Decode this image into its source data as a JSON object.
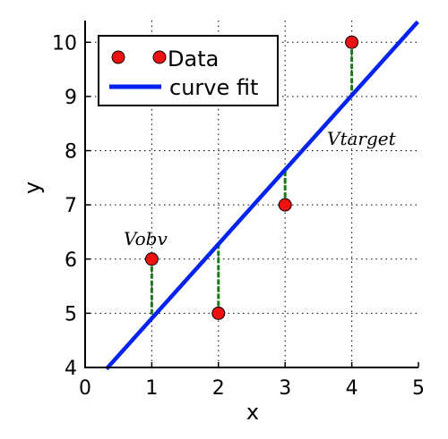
{
  "chart_data": {
    "type": "scatter",
    "xlabel": "x",
    "ylabel": "y",
    "xlim": [
      0,
      5
    ],
    "ylim": [
      4,
      10.4
    ],
    "xticks": [
      0,
      1,
      2,
      3,
      4,
      5
    ],
    "yticks": [
      4,
      5,
      6,
      7,
      8,
      9,
      10
    ],
    "grid": true,
    "legend_position": "top-left",
    "series": [
      {
        "name": "Data",
        "type": "scatter",
        "x": [
          1,
          2,
          3,
          4
        ],
        "y": [
          6,
          5,
          7,
          10
        ],
        "marker_color": "#ee1111"
      },
      {
        "name": "curve fit",
        "type": "line",
        "x": [
          0.34,
          4.97
        ],
        "y": [
          4.0,
          10.35
        ],
        "color": "#0022ee"
      }
    ],
    "residual_color": "#1a7a1a",
    "annotations": [
      {
        "text": "Vobv"
      },
      {
        "text": "Vtarget"
      }
    ]
  }
}
